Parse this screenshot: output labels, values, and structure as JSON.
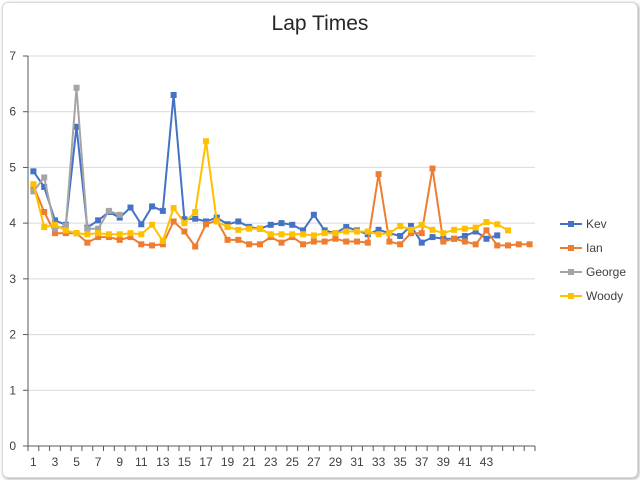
{
  "chart_data": {
    "type": "line",
    "title": "Lap Times",
    "xlabel": "",
    "ylabel": "",
    "ylim": [
      0,
      7
    ],
    "y_ticks": [
      0,
      1,
      2,
      3,
      4,
      5,
      6,
      7
    ],
    "xlim": [
      1,
      47
    ],
    "x_tick_labels": [
      "1",
      "3",
      "5",
      "7",
      "9",
      "11",
      "13",
      "15",
      "17",
      "19",
      "21",
      "23",
      "25",
      "27",
      "29",
      "31",
      "33",
      "35",
      "37",
      "39",
      "41",
      "43"
    ],
    "grid": true,
    "legend_position": "right",
    "series": [
      {
        "name": "Kev",
        "color": "#4472c4",
        "values": [
          4.93,
          4.65,
          4.05,
          3.97,
          5.73,
          3.92,
          4.05,
          4.2,
          4.1,
          4.28,
          3.98,
          4.3,
          4.22,
          6.3,
          4.07,
          4.08,
          4.03,
          4.1,
          3.98,
          4.03,
          3.93,
          3.9,
          3.97,
          4.0,
          3.97,
          3.87,
          4.15,
          3.87,
          3.82,
          3.93,
          3.87,
          3.8,
          3.88,
          3.82,
          3.77,
          3.95,
          3.65,
          3.75,
          3.72,
          3.72,
          3.77,
          3.85,
          3.72,
          3.78
        ]
      },
      {
        "name": "Ian",
        "color": "#ed7d31",
        "values": [
          4.67,
          4.2,
          3.82,
          3.82,
          3.82,
          3.65,
          3.75,
          3.75,
          3.7,
          3.75,
          3.62,
          3.6,
          3.62,
          4.03,
          3.85,
          3.58,
          3.98,
          4.05,
          3.7,
          3.7,
          3.62,
          3.62,
          3.75,
          3.65,
          3.75,
          3.62,
          3.67,
          3.67,
          3.72,
          3.67,
          3.67,
          3.65,
          4.88,
          3.67,
          3.62,
          3.82,
          3.82,
          4.98,
          3.67,
          3.72,
          3.67,
          3.62,
          3.87,
          3.6,
          3.6,
          3.62,
          3.62
        ]
      },
      {
        "name": "George",
        "color": "#a5a5a5",
        "values": [
          4.57,
          4.82,
          3.9,
          3.95,
          6.43,
          3.9,
          3.9,
          4.22,
          4.15
        ]
      },
      {
        "name": "Woody",
        "color": "#ffc000",
        "values": [
          4.7,
          3.93,
          3.97,
          3.87,
          3.82,
          3.8,
          3.82,
          3.8,
          3.8,
          3.82,
          3.8,
          3.97,
          3.68,
          4.27,
          4.0,
          4.2,
          5.47,
          4.03,
          3.93,
          3.88,
          3.9,
          3.9,
          3.8,
          3.8,
          3.8,
          3.8,
          3.78,
          3.82,
          3.82,
          3.85,
          3.85,
          3.85,
          3.8,
          3.82,
          3.95,
          3.88,
          3.97,
          3.88,
          3.82,
          3.88,
          3.9,
          3.92,
          4.02,
          3.98,
          3.87
        ]
      }
    ]
  }
}
